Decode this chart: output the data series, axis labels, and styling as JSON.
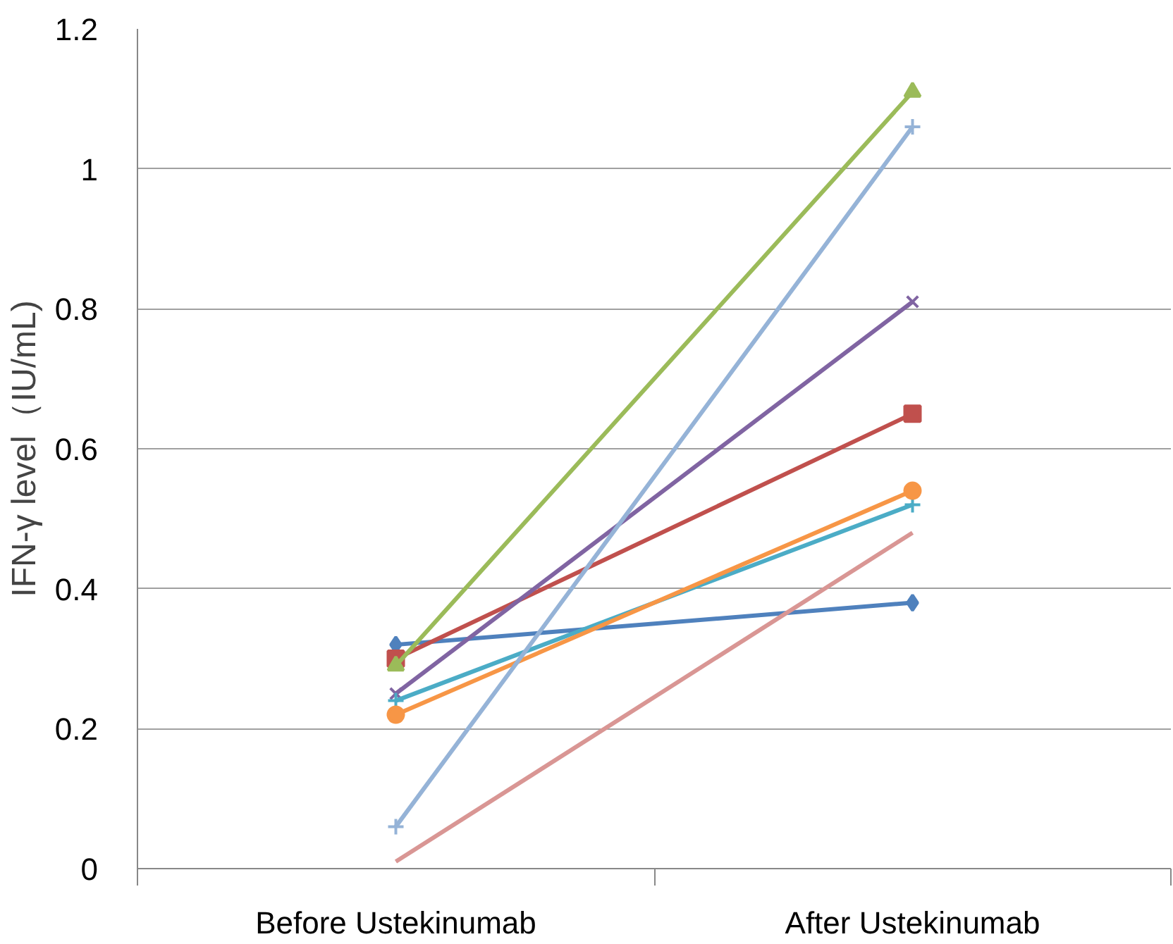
{
  "chart_data": {
    "type": "line",
    "ylabel": "IFN-γ level（IU/mL)",
    "categories": [
      "Before Ustekinumab",
      "After Ustekinumab"
    ],
    "series": [
      {
        "color": "#4f81bd",
        "marker": "diamond",
        "values": [
          0.32,
          0.38
        ]
      },
      {
        "color": "#c0504d",
        "marker": "square",
        "values": [
          0.3,
          0.65
        ]
      },
      {
        "color": "#9bbb59",
        "marker": "triangle",
        "values": [
          0.29,
          1.11
        ]
      },
      {
        "color": "#8064a2",
        "marker": "x",
        "values": [
          0.25,
          0.81
        ]
      },
      {
        "color": "#4bacc6",
        "marker": "cross",
        "values": [
          0.24,
          0.52
        ]
      },
      {
        "color": "#f79646",
        "marker": "circle",
        "values": [
          0.22,
          0.54
        ]
      },
      {
        "color": "#95b3d7",
        "marker": "cross",
        "values": [
          0.06,
          1.06
        ]
      },
      {
        "color": "#d99694",
        "marker": "none",
        "values": [
          0.01,
          0.48
        ]
      }
    ],
    "ylim": [
      0,
      1.2
    ],
    "yticks": [
      0,
      {
        "value": 0.2,
        "label": "0.2"
      },
      {
        "value": 0.4,
        "label": "0.4"
      },
      {
        "value": 0.6,
        "label": "0.6"
      },
      {
        "value": 0.8,
        "label": "0.8"
      },
      1,
      {
        "value": 1.2,
        "label": "1.2"
      }
    ],
    "grid": "y",
    "line_style": "solid"
  }
}
